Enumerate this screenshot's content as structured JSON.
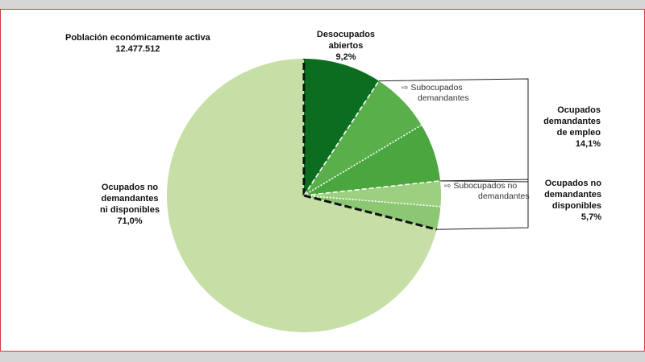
{
  "header": {
    "title": "Población económicamente activa",
    "total": "12.477.512"
  },
  "labels": {
    "desocupados": [
      "Desocupados",
      "abiertos",
      "9,2%"
    ],
    "ocupados_dem_empleo": [
      "Ocupados",
      "demandantes",
      "de empleo",
      "14,1%"
    ],
    "ocupados_no_dem_disp": [
      "Ocupados no",
      "demandantes",
      "disponibles",
      "5,7%"
    ],
    "ocupados_no_dem_ni_disp": [
      "Ocupados no",
      "demandantes",
      "ni disponibles",
      "71,0%"
    ],
    "subocupados_dem": [
      "Subocupados",
      "demandantes"
    ],
    "subocupados_no_dem": [
      "Subocupados no",
      "demandantes"
    ]
  },
  "chart_data": {
    "type": "pie",
    "title": "Población económicamente activa",
    "subtitle": "12.477.512",
    "slices": [
      {
        "name": "Desocupados abiertos",
        "value": 9.2,
        "color": "#0b6e1e"
      },
      {
        "name": "Subocupados demandantes",
        "value": 7.2,
        "color": "#59b04a"
      },
      {
        "name": "Ocupados demandantes de empleo (resto)",
        "value": 6.9,
        "color": "#4aa63e"
      },
      {
        "name": "Subocupados no demandantes",
        "value": 3.0,
        "color": "#9ccf7f"
      },
      {
        "name": "Ocupados no demandantes disponibles (resto)",
        "value": 2.7,
        "color": "#8cc874"
      },
      {
        "name": "Ocupados no demandantes ni disponibles",
        "value": 71.0,
        "color": "#c5dfa7"
      }
    ]
  }
}
